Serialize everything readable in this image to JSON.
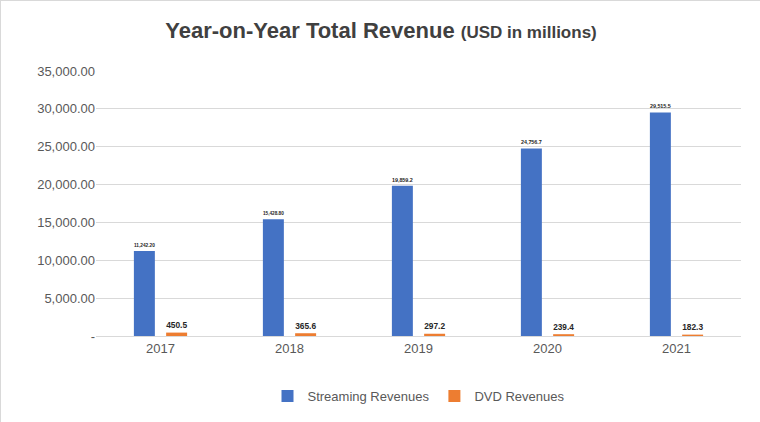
{
  "chart_data": {
    "type": "bar",
    "title": "Year-on-Year Total Revenue",
    "subtitle": "(USD in millions)",
    "categories": [
      "2017",
      "2018",
      "2019",
      "2020",
      "2021"
    ],
    "series": [
      {
        "name": "Streaming Revenues",
        "color": "#4472c4",
        "values": [
          11242.2,
          15428.8,
          19859.2,
          24756.7,
          29515.5
        ],
        "value_labels": [
          "11,242.20",
          "15,428.80",
          "19,859.2",
          "24,756.7",
          "29,515.5"
        ]
      },
      {
        "name": "DVD Revenues",
        "color": "#ed7d31",
        "values": [
          450.5,
          365.6,
          297.2,
          239.4,
          182.3
        ]
      }
    ],
    "ylim": [
      0,
      35000
    ],
    "yticks": [
      {
        "value": 0,
        "label": "-"
      },
      {
        "value": 5000,
        "label": "5,000.00"
      },
      {
        "value": 10000,
        "label": "10,000.00"
      },
      {
        "value": 15000,
        "label": "15,000.00"
      },
      {
        "value": 20000,
        "label": "20,000.00"
      },
      {
        "value": 25000,
        "label": "25,000.00"
      },
      {
        "value": 30000,
        "label": "30,000.00"
      },
      {
        "value": 35000,
        "label": "35,000.00"
      }
    ],
    "grid": true,
    "legend": "bottom",
    "data_labels": true
  }
}
